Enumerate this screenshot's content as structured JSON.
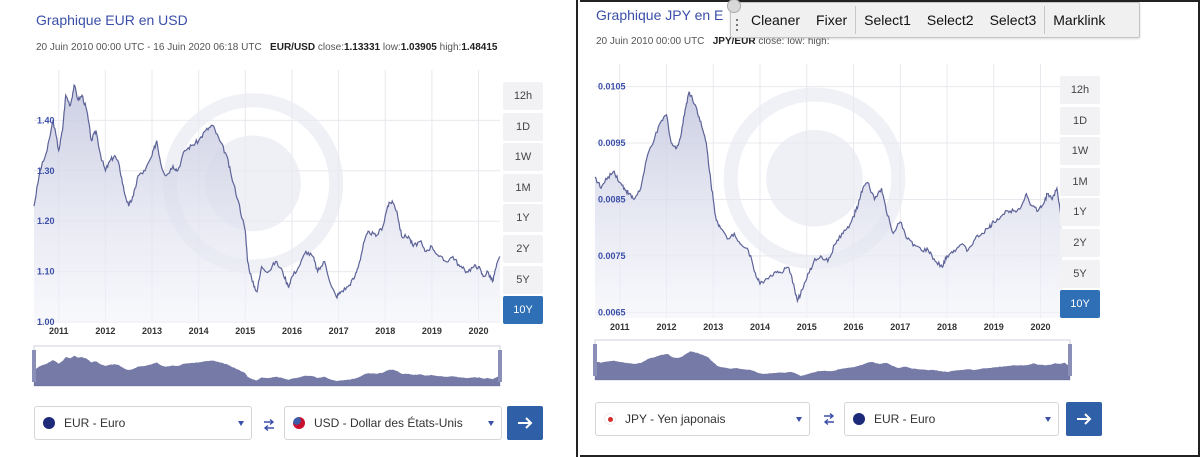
{
  "charts": [
    {
      "title": "Graphique EUR en USD",
      "range_text": "20 Juin 2010 00:00 UTC - 16 Juin 2020 06:18 UTC",
      "pair": "EUR/USD",
      "close_label": "close:",
      "close_value": "1.13331",
      "low_label": "low:",
      "low_value": "1.03905",
      "high_label": "high:",
      "high_value": "1.48415",
      "from_currency": "EUR - Euro",
      "to_currency": "USD - Dollar des États-Unis",
      "from_flag_color": "#1d2a7a",
      "to_flag_color": "#b22234"
    },
    {
      "title": "Graphique JPY en E",
      "range_text": "20 Juin 2010 00:00 UTC",
      "pair": "JPY/EUR",
      "close_label": "close:",
      "close_value": "",
      "low_label": "low:",
      "low_value": "",
      "high_label": "high:",
      "high_value": "",
      "from_currency": "JPY - Yen japonais",
      "to_currency": "EUR - Euro",
      "from_flag_color": "#d32f2f",
      "to_flag_color": "#1d2a7a"
    }
  ],
  "timeframes": [
    "12h",
    "1D",
    "1W",
    "1M",
    "1Y",
    "2Y",
    "5Y",
    "10Y"
  ],
  "active_timeframe": "10Y",
  "toolbar": {
    "items": [
      "Cleaner",
      "Fixer",
      "Select1",
      "Select2",
      "Select3",
      "Marklink"
    ]
  },
  "colors": {
    "title": "#3b4fa8",
    "line": "#5d6398",
    "fill": "#dfe1ef",
    "active": "#2f6fb6",
    "go_button": "#2f5fa6"
  },
  "chart_data": [
    {
      "type": "area",
      "title": "Graphique EUR en USD",
      "xlabel": "",
      "ylabel": "",
      "x_ticks": [
        "2011",
        "2012",
        "2013",
        "2014",
        "2015",
        "2016",
        "2017",
        "2018",
        "2019",
        "2020"
      ],
      "y_ticks": [
        "1.00",
        "1.10",
        "1.20",
        "1.30",
        "1.40"
      ],
      "xlim": [
        2010.47,
        2020.46
      ],
      "ylim": [
        1.0,
        1.5
      ],
      "grid": true,
      "series": [
        {
          "values": [
            [
              2010.47,
              1.23
            ],
            [
              2010.6,
              1.3
            ],
            [
              2010.75,
              1.34
            ],
            [
              2010.88,
              1.4
            ],
            [
              2011.0,
              1.34
            ],
            [
              2011.08,
              1.38
            ],
            [
              2011.15,
              1.45
            ],
            [
              2011.25,
              1.43
            ],
            [
              2011.33,
              1.47
            ],
            [
              2011.42,
              1.44
            ],
            [
              2011.5,
              1.45
            ],
            [
              2011.6,
              1.42
            ],
            [
              2011.7,
              1.36
            ],
            [
              2011.8,
              1.38
            ],
            [
              2011.9,
              1.33
            ],
            [
              2012.0,
              1.3
            ],
            [
              2012.1,
              1.32
            ],
            [
              2012.2,
              1.33
            ],
            [
              2012.3,
              1.31
            ],
            [
              2012.4,
              1.26
            ],
            [
              2012.5,
              1.23
            ],
            [
              2012.6,
              1.25
            ],
            [
              2012.7,
              1.29
            ],
            [
              2012.85,
              1.3
            ],
            [
              2013.0,
              1.33
            ],
            [
              2013.1,
              1.36
            ],
            [
              2013.2,
              1.31
            ],
            [
              2013.3,
              1.29
            ],
            [
              2013.45,
              1.31
            ],
            [
              2013.55,
              1.3
            ],
            [
              2013.7,
              1.34
            ],
            [
              2013.85,
              1.35
            ],
            [
              2014.0,
              1.36
            ],
            [
              2014.15,
              1.38
            ],
            [
              2014.3,
              1.39
            ],
            [
              2014.45,
              1.36
            ],
            [
              2014.6,
              1.33
            ],
            [
              2014.7,
              1.29
            ],
            [
              2014.85,
              1.24
            ],
            [
              2015.0,
              1.18
            ],
            [
              2015.05,
              1.12
            ],
            [
              2015.15,
              1.08
            ],
            [
              2015.25,
              1.06
            ],
            [
              2015.35,
              1.11
            ],
            [
              2015.5,
              1.1
            ],
            [
              2015.65,
              1.12
            ],
            [
              2015.8,
              1.1
            ],
            [
              2015.92,
              1.07
            ],
            [
              2016.0,
              1.09
            ],
            [
              2016.15,
              1.11
            ],
            [
              2016.3,
              1.14
            ],
            [
              2016.45,
              1.13
            ],
            [
              2016.55,
              1.1
            ],
            [
              2016.7,
              1.12
            ],
            [
              2016.85,
              1.07
            ],
            [
              2016.95,
              1.05
            ],
            [
              2017.05,
              1.06
            ],
            [
              2017.2,
              1.07
            ],
            [
              2017.35,
              1.09
            ],
            [
              2017.45,
              1.12
            ],
            [
              2017.55,
              1.16
            ],
            [
              2017.65,
              1.18
            ],
            [
              2017.8,
              1.17
            ],
            [
              2017.95,
              1.19
            ],
            [
              2018.05,
              1.23
            ],
            [
              2018.15,
              1.24
            ],
            [
              2018.25,
              1.22
            ],
            [
              2018.35,
              1.17
            ],
            [
              2018.5,
              1.17
            ],
            [
              2018.6,
              1.15
            ],
            [
              2018.75,
              1.16
            ],
            [
              2018.85,
              1.14
            ],
            [
              2019.0,
              1.15
            ],
            [
              2019.15,
              1.13
            ],
            [
              2019.3,
              1.12
            ],
            [
              2019.45,
              1.13
            ],
            [
              2019.6,
              1.11
            ],
            [
              2019.75,
              1.1
            ],
            [
              2019.9,
              1.11
            ],
            [
              2020.0,
              1.11
            ],
            [
              2020.1,
              1.09
            ],
            [
              2020.2,
              1.1
            ],
            [
              2020.3,
              1.08
            ],
            [
              2020.38,
              1.11
            ],
            [
              2020.46,
              1.13
            ]
          ]
        }
      ]
    },
    {
      "type": "area",
      "title": "Graphique JPY en E",
      "xlabel": "",
      "ylabel": "",
      "x_ticks": [
        "2011",
        "2012",
        "2013",
        "2014",
        "2015",
        "2016",
        "2017",
        "2018",
        "2019",
        "2020"
      ],
      "y_ticks": [
        "0.0065",
        "0.0075",
        "0.0085",
        "0.0095",
        "0.0105"
      ],
      "xlim": [
        2010.47,
        2020.46
      ],
      "ylim": [
        0.0064,
        0.0109
      ],
      "grid": true,
      "series": [
        {
          "values": [
            [
              2010.47,
              0.0089
            ],
            [
              2010.6,
              0.0087
            ],
            [
              2010.75,
              0.0089
            ],
            [
              2010.88,
              0.009
            ],
            [
              2011.0,
              0.0088
            ],
            [
              2011.1,
              0.0087
            ],
            [
              2011.2,
              0.0086
            ],
            [
              2011.3,
              0.0085
            ],
            [
              2011.45,
              0.0087
            ],
            [
              2011.6,
              0.0093
            ],
            [
              2011.75,
              0.0096
            ],
            [
              2011.9,
              0.0099
            ],
            [
              2012.0,
              0.01
            ],
            [
              2012.1,
              0.0095
            ],
            [
              2012.2,
              0.0094
            ],
            [
              2012.3,
              0.0096
            ],
            [
              2012.4,
              0.0101
            ],
            [
              2012.48,
              0.0104
            ],
            [
              2012.55,
              0.0103
            ],
            [
              2012.65,
              0.0101
            ],
            [
              2012.75,
              0.0098
            ],
            [
              2012.85,
              0.0095
            ],
            [
              2012.95,
              0.0088
            ],
            [
              2013.05,
              0.0082
            ],
            [
              2013.15,
              0.008
            ],
            [
              2013.3,
              0.0078
            ],
            [
              2013.45,
              0.0079
            ],
            [
              2013.6,
              0.0077
            ],
            [
              2013.75,
              0.0076
            ],
            [
              2013.9,
              0.0072
            ],
            [
              2014.0,
              0.007
            ],
            [
              2014.15,
              0.0071
            ],
            [
              2014.3,
              0.0072
            ],
            [
              2014.45,
              0.0072
            ],
            [
              2014.6,
              0.0073
            ],
            [
              2014.72,
              0.007
            ],
            [
              2014.8,
              0.0067
            ],
            [
              2014.9,
              0.0069
            ],
            [
              2015.0,
              0.0071
            ],
            [
              2015.15,
              0.0074
            ],
            [
              2015.3,
              0.0075
            ],
            [
              2015.45,
              0.0074
            ],
            [
              2015.6,
              0.0077
            ],
            [
              2015.75,
              0.0079
            ],
            [
              2015.9,
              0.008
            ],
            [
              2016.0,
              0.0082
            ],
            [
              2016.1,
              0.0084
            ],
            [
              2016.2,
              0.0087
            ],
            [
              2016.3,
              0.0088
            ],
            [
              2016.45,
              0.0085
            ],
            [
              2016.6,
              0.0087
            ],
            [
              2016.7,
              0.0083
            ],
            [
              2016.85,
              0.0079
            ],
            [
              2017.0,
              0.0081
            ],
            [
              2017.15,
              0.0078
            ],
            [
              2017.3,
              0.0077
            ],
            [
              2017.45,
              0.0076
            ],
            [
              2017.6,
              0.0076
            ],
            [
              2017.75,
              0.0074
            ],
            [
              2017.9,
              0.0073
            ],
            [
              2018.0,
              0.0075
            ],
            [
              2018.15,
              0.0076
            ],
            [
              2018.3,
              0.0077
            ],
            [
              2018.45,
              0.0076
            ],
            [
              2018.6,
              0.0078
            ],
            [
              2018.75,
              0.0079
            ],
            [
              2018.9,
              0.008
            ],
            [
              2019.0,
              0.0081
            ],
            [
              2019.15,
              0.0082
            ],
            [
              2019.3,
              0.0083
            ],
            [
              2019.45,
              0.0083
            ],
            [
              2019.6,
              0.0084
            ],
            [
              2019.7,
              0.0086
            ],
            [
              2019.8,
              0.0084
            ],
            [
              2019.95,
              0.0083
            ],
            [
              2020.05,
              0.0084
            ],
            [
              2020.15,
              0.0086
            ],
            [
              2020.25,
              0.0085
            ],
            [
              2020.35,
              0.0087
            ],
            [
              2020.46,
              0.0081
            ]
          ]
        }
      ]
    }
  ]
}
